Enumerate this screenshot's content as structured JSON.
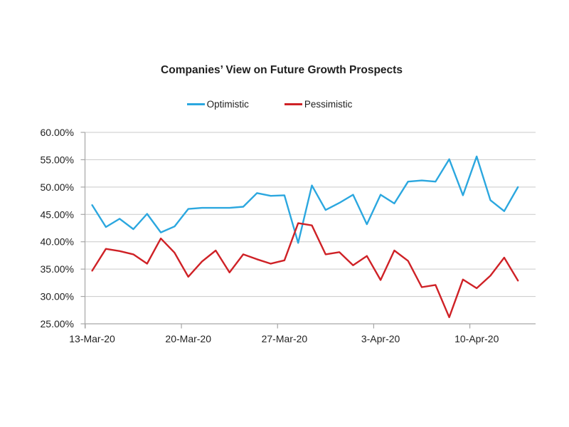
{
  "page": {
    "background": "#ffffff"
  },
  "chart_data": {
    "type": "line",
    "title": "Companies’ View on Future Growth Prospects",
    "legend_position": "top",
    "grid": "horizontal",
    "categories": [
      "13-Mar-20",
      "14-Mar-20",
      "15-Mar-20",
      "16-Mar-20",
      "17-Mar-20",
      "18-Mar-20",
      "19-Mar-20",
      "20-Mar-20",
      "21-Mar-20",
      "22-Mar-20",
      "23-Mar-20",
      "24-Mar-20",
      "25-Mar-20",
      "26-Mar-20",
      "27-Mar-20",
      "28-Mar-20",
      "29-Mar-20",
      "30-Mar-20",
      "31-Mar-20",
      "1-Apr-20",
      "2-Apr-20",
      "3-Apr-20",
      "4-Apr-20",
      "5-Apr-20",
      "6-Apr-20",
      "7-Apr-20",
      "8-Apr-20",
      "9-Apr-20",
      "10-Apr-20",
      "11-Apr-20",
      "12-Apr-20",
      "13-Apr-20"
    ],
    "series": [
      {
        "name": "Optimistic",
        "color": "#2BA7DF",
        "values": [
          46.7,
          42.7,
          44.2,
          42.3,
          45.1,
          41.7,
          42.8,
          46.0,
          46.2,
          46.2,
          46.2,
          46.4,
          48.9,
          48.4,
          48.5,
          39.8,
          50.3,
          45.8,
          47.1,
          48.6,
          43.2,
          48.6,
          47.0,
          51.0,
          51.2,
          51.0,
          55.1,
          48.5,
          55.6,
          47.6,
          45.6,
          50.0
        ]
      },
      {
        "name": "Pessimistic",
        "color": "#CF2126",
        "values": [
          34.7,
          38.7,
          38.3,
          37.7,
          36.0,
          40.6,
          38.0,
          33.6,
          36.4,
          38.4,
          34.4,
          37.7,
          36.8,
          36.0,
          36.6,
          43.4,
          43.0,
          37.7,
          38.1,
          35.7,
          37.4,
          33.0,
          38.4,
          36.5,
          31.7,
          32.1,
          26.2,
          33.1,
          31.5,
          33.8,
          37.1,
          32.9
        ]
      }
    ],
    "ylim": [
      25,
      60
    ],
    "y_tick_values": [
      60,
      55,
      50,
      45,
      40,
      35,
      30,
      25
    ],
    "y_tick_labels": [
      "60.00%",
      "55.00%",
      "50.00%",
      "45.00%",
      "40.00%",
      "35.00%",
      "30.00%",
      "25.00%"
    ],
    "x_tick_labels": [
      "13-Mar-20",
      "20-Mar-20",
      "27-Mar-20",
      "3-Apr-20",
      "10-Apr-20"
    ],
    "x_tick_category_indexes": [
      0,
      7,
      14,
      21,
      28
    ],
    "gridline_color": "#C9C9C9",
    "axis_color": "#A6A6A6",
    "text_color": "#1f1f1f"
  }
}
